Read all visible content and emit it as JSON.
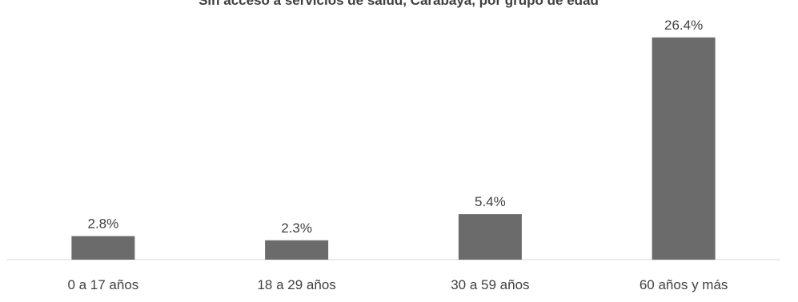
{
  "chart_data": {
    "type": "bar",
    "title": "Sin acceso a servicios de salud, Carabaya, por grupo de edad",
    "categories": [
      "0 a 17 años",
      "18 a 29 años",
      "30 a 59 años",
      "60 años y más"
    ],
    "values": [
      2.8,
      2.3,
      5.4,
      26.4
    ],
    "value_labels": [
      "2.8%",
      "2.3%",
      "5.4%",
      "26.4%"
    ],
    "xlabel": "",
    "ylabel": "",
    "ylim": [
      0,
      28
    ],
    "grid": false,
    "legend": "none",
    "colors": {
      "bar": "#6b6b6b",
      "axis": "#d9d9d9",
      "text": "#404040"
    }
  }
}
